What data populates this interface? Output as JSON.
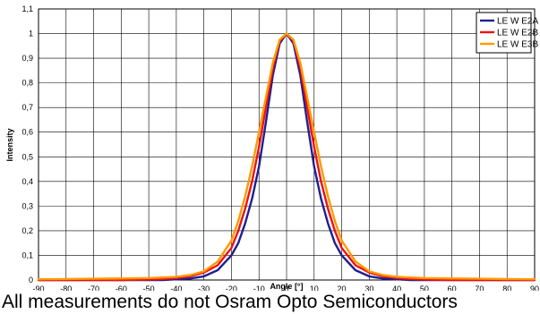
{
  "chart_data": {
    "type": "line",
    "xlabel": "Angle [°]",
    "ylabel": "Intensity",
    "xlim": [
      -90,
      90
    ],
    "ylim": [
      0,
      1.1
    ],
    "x_ticks": [
      "-90",
      "-80",
      "-70",
      "-60",
      "-50",
      "-40",
      "-30",
      "-20",
      "-10",
      "0",
      "10",
      "20",
      "30",
      "40",
      "50",
      "60",
      "70",
      "80",
      "90"
    ],
    "y_ticks": [
      "0",
      "0,1",
      "0,2",
      "0,3",
      "0,4",
      "0,5",
      "0,6",
      "0,7",
      "0,8",
      "0,9",
      "1",
      "1,1"
    ],
    "grid": true,
    "legend_position": "top-right",
    "x": [
      -90,
      -80,
      -70,
      -60,
      -50,
      -45,
      -40,
      -35,
      -30,
      -25,
      -20,
      -17.5,
      -15,
      -12.5,
      -10,
      -7.5,
      -5,
      -2.5,
      0,
      2.5,
      5,
      7.5,
      10,
      12.5,
      15,
      17.5,
      20,
      25,
      30,
      35,
      40,
      45,
      50,
      60,
      70,
      80,
      90
    ],
    "series": [
      {
        "name": "LE W E2A",
        "color": "#1f1f8f",
        "values": [
          0,
          0,
          0,
          0,
          0,
          0,
          0.003,
          0.006,
          0.015,
          0.04,
          0.1,
          0.15,
          0.23,
          0.33,
          0.46,
          0.64,
          0.83,
          0.96,
          1,
          0.96,
          0.83,
          0.64,
          0.46,
          0.33,
          0.23,
          0.15,
          0.1,
          0.04,
          0.015,
          0.006,
          0.003,
          0,
          0,
          0,
          0,
          0,
          0
        ]
      },
      {
        "name": "LE W E2B",
        "color": "#ee1111",
        "values": [
          0,
          0,
          0,
          0,
          0.002,
          0.004,
          0.008,
          0.015,
          0.03,
          0.06,
          0.13,
          0.2,
          0.29,
          0.4,
          0.54,
          0.7,
          0.86,
          0.97,
          1,
          0.97,
          0.86,
          0.7,
          0.54,
          0.4,
          0.29,
          0.2,
          0.13,
          0.06,
          0.03,
          0.015,
          0.008,
          0.004,
          0.002,
          0,
          0,
          0,
          0
        ]
      },
      {
        "name": "LE W E3B",
        "color": "#ff9900",
        "values": [
          0.003,
          0.004,
          0.005,
          0.006,
          0.008,
          0.01,
          0.013,
          0.02,
          0.035,
          0.075,
          0.16,
          0.24,
          0.34,
          0.46,
          0.6,
          0.74,
          0.88,
          0.975,
          1,
          0.975,
          0.88,
          0.74,
          0.6,
          0.46,
          0.34,
          0.24,
          0.16,
          0.075,
          0.035,
          0.02,
          0.013,
          0.01,
          0.008,
          0.006,
          0.005,
          0.004,
          0.003
        ]
      }
    ]
  },
  "caption": "All measurements do not Osram Opto Semiconductors"
}
